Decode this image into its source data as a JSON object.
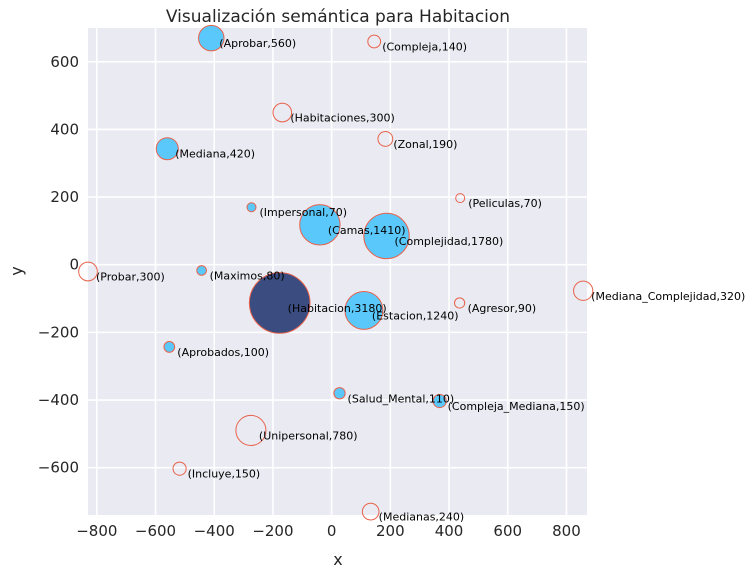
{
  "chart_data": {
    "type": "scatter",
    "title": "Visualización semántica para Habitacion",
    "xlabel": "x",
    "ylabel": "y",
    "xlim": [
      -830,
      870
    ],
    "ylim": [
      -740,
      700
    ],
    "xticks": [
      -800,
      -600,
      -400,
      -200,
      0,
      200,
      400,
      600,
      800
    ],
    "yticks": [
      -600,
      -400,
      -200,
      0,
      200,
      400,
      600
    ],
    "xtick_labels": [
      "−800",
      "−600",
      "−400",
      "−200",
      "0",
      "200",
      "400",
      "600",
      "800"
    ],
    "ytick_labels": [
      "−600",
      "−400",
      "−200",
      "0",
      "200",
      "400",
      "600"
    ],
    "grid": true,
    "colors": {
      "background": "#eaeaf2",
      "grid": "#ffffff",
      "filled": "#5bc8fb",
      "highlight": "#3b4d80",
      "edge": "#e8624a"
    },
    "points": [
      {
        "label": "(Aprobar,560)",
        "x": -410,
        "y": 670,
        "size": 560,
        "style": "filled"
      },
      {
        "label": "(Compleja,140)",
        "x": 145,
        "y": 660,
        "size": 140,
        "style": "hollow"
      },
      {
        "label": "(Habitaciones,300)",
        "x": -168,
        "y": 450,
        "size": 300,
        "style": "hollow"
      },
      {
        "label": "(Zonal,190)",
        "x": 183,
        "y": 372,
        "size": 190,
        "style": "hollow"
      },
      {
        "label": "(Mediana,420)",
        "x": -560,
        "y": 343,
        "size": 420,
        "style": "filled"
      },
      {
        "label": "(Peliculas,70)",
        "x": 438,
        "y": 197,
        "size": 70,
        "style": "hollow"
      },
      {
        "label": "(Impersonal,70)",
        "x": -273,
        "y": 170,
        "size": 70,
        "style": "filled"
      },
      {
        "label": "(Camas,1410)",
        "x": -40,
        "y": 118,
        "size": 1410,
        "style": "filled"
      },
      {
        "label": "(Complejidad,1780)",
        "x": 187,
        "y": 85,
        "size": 1780,
        "style": "filled"
      },
      {
        "label": "(Probar,300)",
        "x": -830,
        "y": -20,
        "size": 300,
        "style": "hollow"
      },
      {
        "label": "(Maximos,80)",
        "x": -443,
        "y": -17,
        "size": 80,
        "style": "filled"
      },
      {
        "label": "(Mediana_Complejidad,320)",
        "x": 857,
        "y": -77,
        "size": 320,
        "style": "hollow"
      },
      {
        "label": "(Habitacion,3180)",
        "x": -177,
        "y": -113,
        "size": 3180,
        "style": "highlight"
      },
      {
        "label": "(Agresor,90)",
        "x": 436,
        "y": -113,
        "size": 90,
        "style": "hollow"
      },
      {
        "label": "(Estacion,1240)",
        "x": 110,
        "y": -135,
        "size": 1240,
        "style": "filled"
      },
      {
        "label": "(Aprobados,100)",
        "x": -553,
        "y": -243,
        "size": 100,
        "style": "filled"
      },
      {
        "label": "(Salud_Mental,110)",
        "x": 27,
        "y": -380,
        "size": 110,
        "style": "filled"
      },
      {
        "label": "(Compleja_Mediana,150)",
        "x": 368,
        "y": -403,
        "size": 150,
        "style": "filled"
      },
      {
        "label": "(Unipersonal,780)",
        "x": -275,
        "y": -490,
        "size": 780,
        "style": "hollow"
      },
      {
        "label": "(Incluye,150)",
        "x": -518,
        "y": -603,
        "size": 150,
        "style": "hollow"
      },
      {
        "label": "(Medianas,240)",
        "x": 133,
        "y": -730,
        "size": 240,
        "style": "hollow"
      }
    ]
  }
}
